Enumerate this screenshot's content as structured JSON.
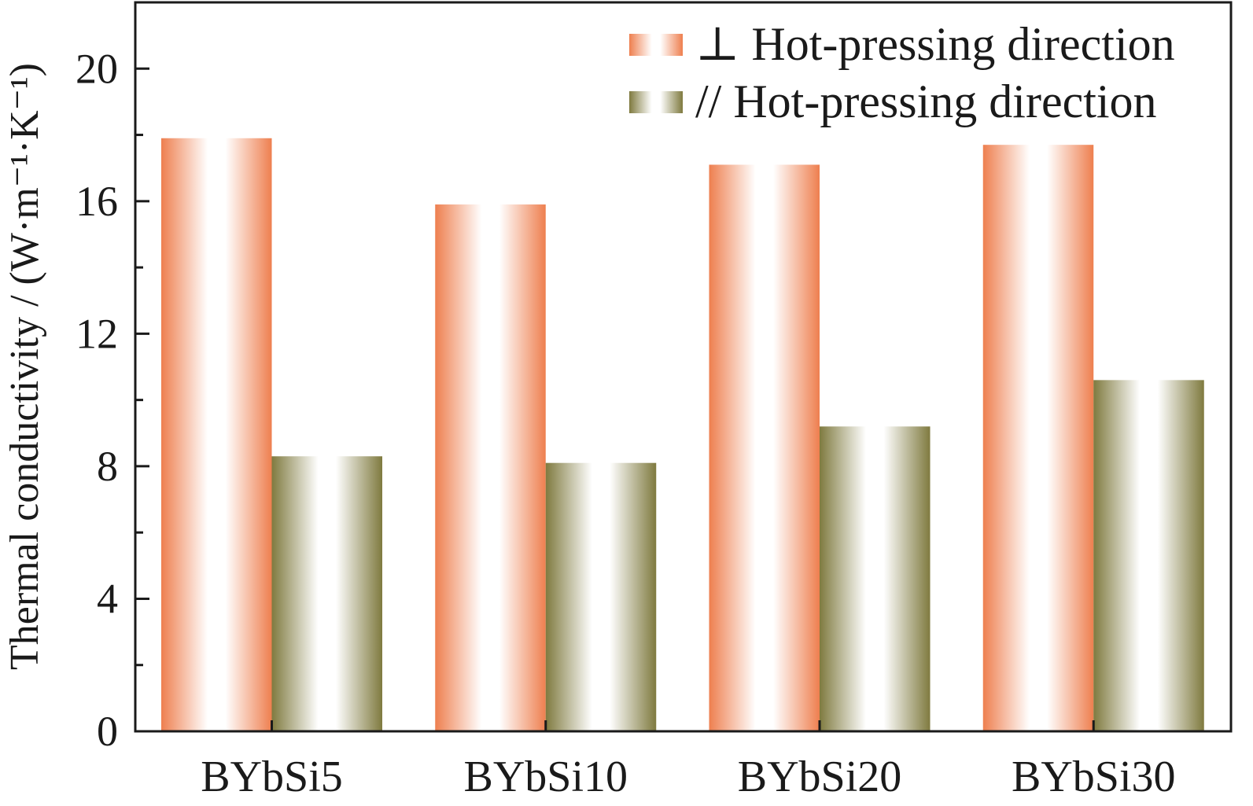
{
  "chart_data": {
    "type": "bar",
    "title": "",
    "xlabel": "",
    "ylabel": "Thermal conductivity / (W·m⁻¹·K⁻¹)",
    "categories": [
      "BYbSi5",
      "BYbSi10",
      "BYbSi20",
      "BYbSi30"
    ],
    "series": [
      {
        "name": "⊥ Hot-pressing direction",
        "color": "#EE7F4F",
        "values": [
          17.9,
          15.9,
          17.1,
          17.7
        ]
      },
      {
        "name": "// Hot-pressing direction",
        "color": "#7F7A3F",
        "values": [
          8.3,
          8.1,
          9.2,
          10.6
        ]
      }
    ],
    "ylim": [
      0,
      22
    ],
    "yticks": [
      0,
      4,
      8,
      12,
      16,
      20
    ],
    "yminor_step": 2,
    "grid": false,
    "legend_position": "top-right"
  }
}
